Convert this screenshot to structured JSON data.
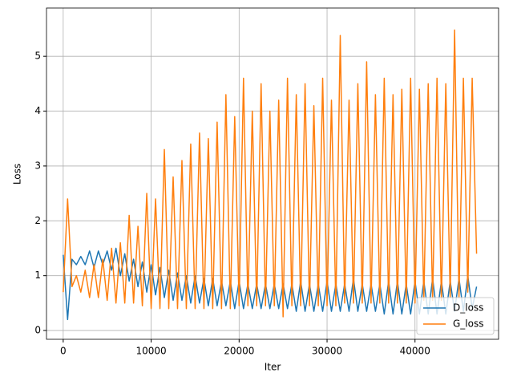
{
  "chart_data": {
    "type": "line",
    "x_label": "Iter",
    "y_label": "Loss",
    "x": [
      0,
      500,
      1000,
      1500,
      2000,
      2500,
      3000,
      3500,
      4000,
      4500,
      5000,
      5500,
      6000,
      6500,
      7000,
      7500,
      8000,
      8500,
      9000,
      9500,
      10000,
      10500,
      11000,
      11500,
      12000,
      12500,
      13000,
      13500,
      14000,
      14500,
      15000,
      15500,
      16000,
      16500,
      17000,
      17500,
      18000,
      18500,
      19000,
      19500,
      20000,
      20500,
      21000,
      21500,
      22000,
      22500,
      23000,
      23500,
      24000,
      24500,
      25000,
      25500,
      26000,
      26500,
      27000,
      27500,
      28000,
      28500,
      29000,
      29500,
      30000,
      30500,
      31000,
      31500,
      32000,
      32500,
      33000,
      33500,
      34000,
      34500,
      35000,
      35500,
      36000,
      36500,
      37000,
      37500,
      38000,
      38500,
      39000,
      39500,
      40000,
      40500,
      41000,
      41500,
      42000,
      42500,
      43000,
      43500,
      44000,
      44500,
      45000,
      45500,
      46000,
      46500,
      47000
    ],
    "series": [
      {
        "name": "D_loss",
        "color": "#1f77b4",
        "values": [
          1.38,
          0.2,
          1.3,
          1.2,
          1.35,
          1.2,
          1.45,
          1.15,
          1.45,
          1.2,
          1.45,
          1.1,
          1.5,
          1.0,
          1.4,
          0.9,
          1.3,
          0.8,
          1.25,
          0.7,
          1.2,
          0.65,
          1.15,
          0.6,
          1.1,
          0.55,
          1.05,
          0.55,
          1.0,
          0.5,
          1.0,
          0.5,
          0.95,
          0.45,
          0.95,
          0.45,
          0.9,
          0.45,
          0.9,
          0.4,
          0.9,
          0.4,
          0.85,
          0.4,
          0.85,
          0.4,
          0.85,
          0.4,
          0.85,
          0.4,
          0.85,
          0.4,
          0.85,
          0.35,
          0.9,
          0.35,
          0.85,
          0.35,
          0.85,
          0.35,
          0.9,
          0.35,
          0.85,
          0.35,
          0.85,
          0.35,
          0.95,
          0.35,
          0.85,
          0.35,
          0.85,
          0.35,
          0.85,
          0.3,
          0.9,
          0.3,
          0.9,
          0.3,
          0.85,
          0.3,
          0.9,
          0.3,
          0.9,
          0.3,
          0.95,
          0.3,
          0.9,
          0.3,
          0.9,
          0.35,
          0.95,
          0.35,
          1.0,
          0.4,
          0.8
        ]
      },
      {
        "name": "G_loss",
        "color": "#ff7f0e",
        "values": [
          0.7,
          2.4,
          0.8,
          1.0,
          0.7,
          1.1,
          0.6,
          1.2,
          0.6,
          1.3,
          0.55,
          1.5,
          0.5,
          1.6,
          0.5,
          2.1,
          0.5,
          1.9,
          0.45,
          2.5,
          0.4,
          2.4,
          0.4,
          3.3,
          0.4,
          2.8,
          0.4,
          3.1,
          0.4,
          3.4,
          0.4,
          3.6,
          0.4,
          3.5,
          0.4,
          3.8,
          0.4,
          4.3,
          0.4,
          3.9,
          0.45,
          4.6,
          0.45,
          4.0,
          0.45,
          4.5,
          0.45,
          4.0,
          0.45,
          4.2,
          0.25,
          4.6,
          0.45,
          4.3,
          0.45,
          4.5,
          0.45,
          4.1,
          0.45,
          4.6,
          0.45,
          4.2,
          0.45,
          5.38,
          0.5,
          4.2,
          0.5,
          4.5,
          0.5,
          4.9,
          0.5,
          4.3,
          0.5,
          4.6,
          0.5,
          4.3,
          0.5,
          4.4,
          0.5,
          4.6,
          0.5,
          4.4,
          0.55,
          4.5,
          0.55,
          4.6,
          0.55,
          4.5,
          0.6,
          5.48,
          0.6,
          4.6,
          0.7,
          4.6,
          1.4
        ]
      }
    ],
    "xlim": [
      -1900,
      49500
    ],
    "xticks": [
      0,
      10000,
      20000,
      30000,
      40000
    ],
    "ylim": [
      -0.16,
      5.88
    ],
    "yticks": [
      0,
      1,
      2,
      3,
      4,
      5
    ],
    "grid": true,
    "legend": "lower right"
  }
}
